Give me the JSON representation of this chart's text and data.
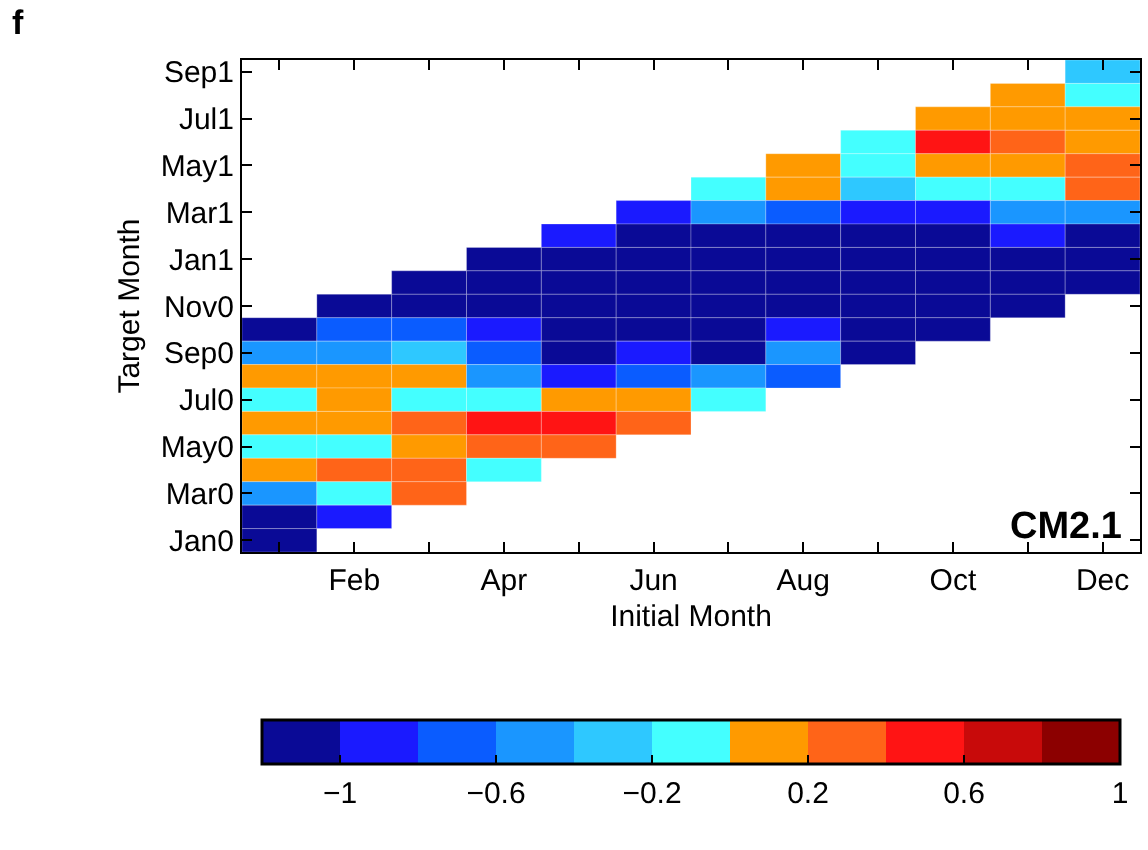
{
  "chart_data": {
    "type": "heatmap",
    "xlabel": "Initial Month",
    "ylabel": "Target Month",
    "annotations": [
      "f",
      "CM2.1"
    ],
    "categories": [
      null,
      "Feb",
      null,
      "Apr",
      null,
      "Jun",
      null,
      "Aug",
      null,
      "Oct",
      null,
      "Dec"
    ],
    "y_categories": [
      "Sep1",
      null,
      "Jul1",
      null,
      "May1",
      null,
      "Mar1",
      null,
      "Jan1",
      null,
      "Nov0",
      null,
      "Sep0",
      null,
      "Jul0",
      null,
      "May0",
      null,
      "Mar0",
      null,
      "Jan0"
    ],
    "cells": [
      [
        null,
        null,
        null,
        null,
        null,
        null,
        null,
        null,
        null,
        null,
        null,
        -0.3
      ],
      [
        null,
        null,
        null,
        null,
        null,
        null,
        null,
        null,
        null,
        null,
        0.1,
        -0.1
      ],
      [
        null,
        null,
        null,
        null,
        null,
        null,
        null,
        null,
        null,
        0.1,
        0.1,
        0.1
      ],
      [
        null,
        null,
        null,
        null,
        null,
        null,
        null,
        null,
        -0.1,
        0.5,
        0.3,
        0.1
      ],
      [
        null,
        null,
        null,
        null,
        null,
        null,
        null,
        0.1,
        -0.1,
        0.1,
        0.1,
        0.3
      ],
      [
        null,
        null,
        null,
        null,
        null,
        null,
        -0.1,
        0.1,
        -0.3,
        -0.1,
        -0.1,
        0.3
      ],
      [
        null,
        null,
        null,
        null,
        null,
        -0.9,
        -0.5,
        -0.7,
        -0.9,
        -0.9,
        -0.5,
        -0.5
      ],
      [
        null,
        null,
        null,
        null,
        -0.9,
        -1.1,
        -1.1,
        -1.1,
        -1.1,
        -1.1,
        -0.9,
        -1.1
      ],
      [
        null,
        null,
        null,
        -1.1,
        -1.1,
        -1.1,
        -1.1,
        -1.1,
        -1.1,
        -1.1,
        -1.1,
        -1.1
      ],
      [
        null,
        null,
        -1.1,
        -1.1,
        -1.1,
        -1.1,
        -1.1,
        -1.1,
        -1.1,
        -1.1,
        -1.1,
        -1.1
      ],
      [
        null,
        -1.1,
        -1.1,
        -1.1,
        -1.1,
        -1.1,
        -1.1,
        -1.1,
        -1.1,
        -1.1,
        -1.1,
        null
      ],
      [
        -1.1,
        -0.7,
        -0.7,
        -0.9,
        -1.1,
        -1.1,
        -1.1,
        -0.9,
        -1.1,
        -1.1,
        null,
        null
      ],
      [
        -0.5,
        -0.5,
        -0.3,
        -0.7,
        -1.1,
        -0.9,
        -1.1,
        -0.5,
        -1.1,
        null,
        null,
        null
      ],
      [
        0.1,
        0.1,
        0.1,
        -0.5,
        -0.9,
        -0.7,
        -0.5,
        -0.7,
        null,
        null,
        null,
        null
      ],
      [
        -0.1,
        0.1,
        -0.1,
        -0.1,
        0.1,
        0.1,
        -0.1,
        null,
        null,
        null,
        null,
        null
      ],
      [
        0.1,
        0.1,
        0.3,
        0.5,
        0.5,
        0.3,
        null,
        null,
        null,
        null,
        null,
        null
      ],
      [
        -0.1,
        -0.1,
        0.1,
        0.3,
        0.3,
        null,
        null,
        null,
        null,
        null,
        null,
        null
      ],
      [
        0.1,
        0.3,
        0.3,
        -0.1,
        null,
        null,
        null,
        null,
        null,
        null,
        null,
        null
      ],
      [
        -0.5,
        -0.1,
        0.3,
        null,
        null,
        null,
        null,
        null,
        null,
        null,
        null,
        null
      ],
      [
        -1.1,
        -0.9,
        null,
        null,
        null,
        null,
        null,
        null,
        null,
        null,
        null,
        null
      ],
      [
        -1.1,
        null,
        null,
        null,
        null,
        null,
        null,
        null,
        null,
        null,
        null,
        null
      ]
    ],
    "clim": [
      -1.2,
      1
    ],
    "cticks": [
      {
        "value": -1,
        "label": "−1"
      },
      {
        "value": -0.6,
        "label": "−0.6"
      },
      {
        "value": -0.2,
        "label": "−0.2"
      },
      0.2,
      0.6,
      1
    ]
  }
}
